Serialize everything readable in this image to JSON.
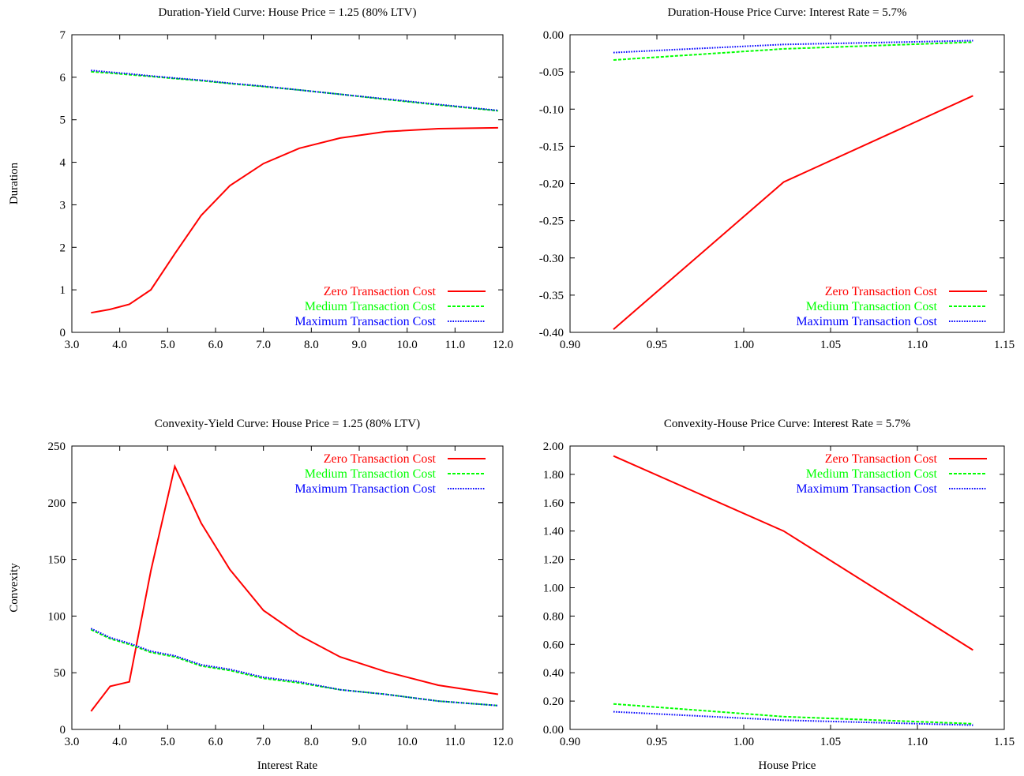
{
  "colors": {
    "zero": "#ff0000",
    "medium": "#00ff00",
    "maximum": "#0000ff"
  },
  "legend_labels": [
    "Zero Transaction Cost",
    "Medium Transaction Cost",
    "Maximum Transaction Cost"
  ],
  "chart_data": [
    {
      "type": "line",
      "title": "Duration-Yield Curve: House Price = 1.25 (80% LTV)",
      "xlabel": "",
      "ylabel": "Duration",
      "xlim": [
        3.0,
        12.0
      ],
      "ylim": [
        0,
        7
      ],
      "xticks": [
        "3.0",
        "4.0",
        "5.0",
        "6.0",
        "7.0",
        "8.0",
        "9.0",
        "10.0",
        "11.0",
        "12.0"
      ],
      "yticks": [
        "0",
        "1",
        "2",
        "3",
        "4",
        "5",
        "6",
        "7"
      ],
      "legend_position": "bottom-right",
      "series": [
        {
          "name": "Zero Transaction Cost",
          "color": "#ff0000",
          "dash": "solid",
          "x": [
            3.4,
            3.8,
            4.2,
            4.65,
            5.15,
            5.7,
            6.3,
            7.0,
            7.75,
            8.6,
            9.55,
            10.65,
            11.9
          ],
          "y": [
            0.46,
            0.54,
            0.66,
            1.0,
            1.85,
            2.75,
            3.45,
            3.97,
            4.33,
            4.57,
            4.72,
            4.79,
            4.81
          ]
        },
        {
          "name": "Medium Transaction Cost",
          "color": "#00ff00",
          "dash": "dashed",
          "x": [
            3.4,
            3.8,
            4.2,
            4.65,
            5.15,
            5.7,
            6.3,
            7.0,
            7.75,
            8.6,
            9.55,
            10.65,
            11.9
          ],
          "y": [
            6.13,
            6.1,
            6.06,
            6.02,
            5.97,
            5.92,
            5.85,
            5.78,
            5.7,
            5.6,
            5.48,
            5.35,
            5.21
          ]
        },
        {
          "name": "Maximum Transaction Cost",
          "color": "#0000ff",
          "dash": "dotted",
          "x": [
            3.4,
            3.8,
            4.2,
            4.65,
            5.15,
            5.7,
            6.3,
            7.0,
            7.75,
            8.6,
            9.55,
            10.65,
            11.9
          ],
          "y": [
            6.16,
            6.12,
            6.08,
            6.03,
            5.98,
            5.93,
            5.86,
            5.79,
            5.7,
            5.6,
            5.49,
            5.36,
            5.22
          ]
        }
      ]
    },
    {
      "type": "line",
      "title": "Duration-House Price Curve: Interest Rate = 5.7%",
      "xlabel": "",
      "ylabel": "",
      "xlim": [
        0.9,
        1.15
      ],
      "ylim": [
        -0.4,
        0.0
      ],
      "xticks": [
        "0.90",
        "0.95",
        "1.00",
        "1.05",
        "1.10",
        "1.15"
      ],
      "yticks": [
        "-0.40",
        "-0.35",
        "-0.30",
        "-0.25",
        "-0.20",
        "-0.15",
        "-0.10",
        "-0.05",
        "0.00"
      ],
      "legend_position": "bottom-right",
      "series": [
        {
          "name": "Zero Transaction Cost",
          "color": "#ff0000",
          "dash": "solid",
          "x": [
            0.925,
            1.023,
            1.132
          ],
          "y": [
            -0.396,
            -0.198,
            -0.082
          ]
        },
        {
          "name": "Medium Transaction Cost",
          "color": "#00ff00",
          "dash": "dashed",
          "x": [
            0.925,
            1.023,
            1.132
          ],
          "y": [
            -0.034,
            -0.019,
            -0.01
          ]
        },
        {
          "name": "Maximum Transaction Cost",
          "color": "#0000ff",
          "dash": "dotted",
          "x": [
            0.925,
            1.023,
            1.132
          ],
          "y": [
            -0.024,
            -0.013,
            -0.008
          ]
        }
      ]
    },
    {
      "type": "line",
      "title": "Convexity-Yield Curve: House Price = 1.25 (80% LTV)",
      "xlabel": "Interest Rate",
      "ylabel": "Convexity",
      "xlim": [
        3.0,
        12.0
      ],
      "ylim": [
        0,
        250
      ],
      "xticks": [
        "3.0",
        "4.0",
        "5.0",
        "6.0",
        "7.0",
        "8.0",
        "9.0",
        "10.0",
        "11.0",
        "12.0"
      ],
      "yticks": [
        "0",
        "50",
        "100",
        "150",
        "200",
        "250"
      ],
      "legend_position": "top-right",
      "series": [
        {
          "name": "Zero Transaction Cost",
          "color": "#ff0000",
          "dash": "solid",
          "x": [
            3.4,
            3.8,
            4.2,
            4.65,
            5.15,
            5.7,
            6.3,
            7.0,
            7.75,
            8.6,
            9.55,
            10.65,
            11.9
          ],
          "y": [
            16,
            38,
            42,
            140,
            232,
            182,
            141,
            105,
            83,
            64,
            51,
            39,
            31
          ]
        },
        {
          "name": "Medium Transaction Cost",
          "color": "#00ff00",
          "dash": "dashed",
          "x": [
            3.4,
            3.8,
            4.2,
            4.65,
            5.15,
            5.7,
            6.3,
            7.0,
            7.75,
            8.6,
            9.55,
            10.65,
            11.9
          ],
          "y": [
            88,
            80,
            75,
            68,
            64,
            56,
            52,
            45,
            41,
            35,
            31,
            25,
            21
          ]
        },
        {
          "name": "Maximum Transaction Cost",
          "color": "#0000ff",
          "dash": "dotted",
          "x": [
            3.4,
            3.8,
            4.2,
            4.65,
            5.15,
            5.7,
            6.3,
            7.0,
            7.75,
            8.6,
            9.55,
            10.65,
            11.9
          ],
          "y": [
            89,
            81,
            76,
            69,
            65,
            57,
            53,
            46,
            42,
            35,
            31,
            25,
            21
          ]
        }
      ]
    },
    {
      "type": "line",
      "title": "Convexity-House Price Curve: Interest Rate = 5.7%",
      "xlabel": "House Price",
      "ylabel": "",
      "xlim": [
        0.9,
        1.15
      ],
      "ylim": [
        0.0,
        2.0
      ],
      "xticks": [
        "0.90",
        "0.95",
        "1.00",
        "1.05",
        "1.10",
        "1.15"
      ],
      "yticks": [
        "0.00",
        "0.20",
        "0.40",
        "0.60",
        "0.80",
        "1.00",
        "1.20",
        "1.40",
        "1.60",
        "1.80",
        "2.00"
      ],
      "legend_position": "top-right",
      "series": [
        {
          "name": "Zero Transaction Cost",
          "color": "#ff0000",
          "dash": "solid",
          "x": [
            0.925,
            1.023,
            1.132
          ],
          "y": [
            1.93,
            1.4,
            0.56
          ]
        },
        {
          "name": "Medium Transaction Cost",
          "color": "#00ff00",
          "dash": "dashed",
          "x": [
            0.925,
            1.023,
            1.132
          ],
          "y": [
            0.18,
            0.09,
            0.04
          ]
        },
        {
          "name": "Maximum Transaction Cost",
          "color": "#0000ff",
          "dash": "dotted",
          "x": [
            0.925,
            1.023,
            1.132
          ],
          "y": [
            0.125,
            0.065,
            0.03
          ]
        }
      ]
    }
  ]
}
